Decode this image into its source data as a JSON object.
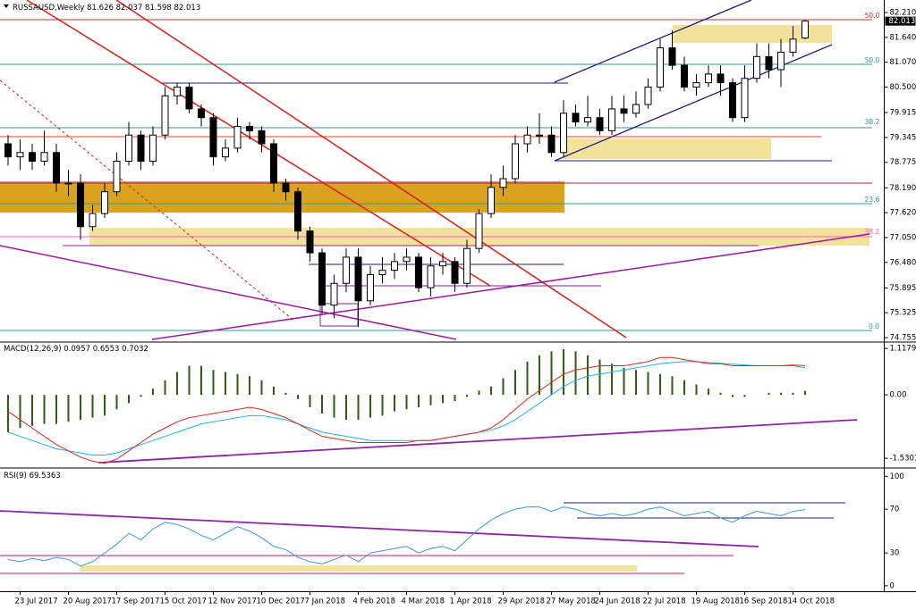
{
  "chart_data": [
    {
      "type": "candlestick",
      "title": "RUSSAUSD,Weekly",
      "categories": [
        null,
        "23 Jul 2017",
        null,
        null,
        null,
        "20 Aug 2017",
        null,
        null,
        null,
        "17 Sep 2017",
        null,
        null,
        null,
        "15 Oct 2017",
        null,
        null,
        null,
        "12 Nov 2017",
        null,
        null,
        null,
        "10 Dec 2017",
        null,
        null,
        null,
        "7 Jan 2018",
        null,
        null,
        null,
        "4 Feb 2018",
        null,
        null,
        null,
        "4 Mar 2018",
        null,
        null,
        null,
        "1 Apr 2018",
        null,
        null,
        null,
        "29 Apr 2018",
        null,
        null,
        null,
        "27 May 2018",
        null,
        null,
        null,
        "24 Jun 2018",
        null,
        null,
        null,
        "22 Jul 2018",
        null,
        null,
        null,
        "19 Aug 2018",
        null,
        null,
        null,
        "16 Sep 2018",
        null,
        null,
        null,
        "14 Oct 2018",
        null
      ],
      "open": [
        79.2,
        78.9,
        79.0,
        78.8,
        79.0,
        78.3,
        78.3,
        77.3,
        77.6,
        78.1,
        78.8,
        79.4,
        78.8,
        79.4,
        80.3,
        80.5,
        80.0,
        79.8,
        78.9,
        79.1,
        79.6,
        79.5,
        79.2,
        78.3,
        78.1,
        77.2,
        76.7,
        75.5,
        76.0,
        76.6,
        75.6,
        76.2,
        76.3,
        76.5,
        76.6,
        75.9,
        76.4,
        76.5,
        76.0,
        76.8,
        77.6,
        78.2,
        78.4,
        79.2,
        79.4,
        79.4,
        79.0,
        79.9,
        79.7,
        79.8,
        79.5,
        80.0,
        79.9,
        80.1,
        80.5,
        81.4,
        81.0,
        80.5,
        80.6,
        80.8,
        80.6,
        79.8,
        80.7,
        81.2,
        80.9,
        81.3,
        81.626
      ],
      "high": [
        79.4,
        79.3,
        79.2,
        79.5,
        79.2,
        78.6,
        78.5,
        77.8,
        78.3,
        79.0,
        79.7,
        79.5,
        79.6,
        80.5,
        80.6,
        80.6,
        80.1,
        79.9,
        79.3,
        79.8,
        79.7,
        79.6,
        79.3,
        78.4,
        78.2,
        77.3,
        76.8,
        76.2,
        76.8,
        76.8,
        76.4,
        76.6,
        76.7,
        76.8,
        76.7,
        76.6,
        76.7,
        76.6,
        77.0,
        77.7,
        78.5,
        78.7,
        79.4,
        79.6,
        79.9,
        79.6,
        80.2,
        80.1,
        80.3,
        80.0,
        80.3,
        80.3,
        80.4,
        80.7,
        81.6,
        81.8,
        81.2,
        80.8,
        81.0,
        81.0,
        80.7,
        81.0,
        81.5,
        81.5,
        81.6,
        81.9,
        82.037
      ],
      "low": [
        78.7,
        78.6,
        78.6,
        78.7,
        78.1,
        78.0,
        77.0,
        77.2,
        77.5,
        78.0,
        78.7,
        78.6,
        78.7,
        79.3,
        80.1,
        79.9,
        79.6,
        78.7,
        78.8,
        79.0,
        79.3,
        79.0,
        78.1,
        77.9,
        77.0,
        76.5,
        75.3,
        75.2,
        75.8,
        75.0,
        75.5,
        76.0,
        76.1,
        76.3,
        75.8,
        75.7,
        76.2,
        75.8,
        75.9,
        76.7,
        77.5,
        78.0,
        78.3,
        79.0,
        79.2,
        78.9,
        78.9,
        79.6,
        79.6,
        79.4,
        79.4,
        79.7,
        79.8,
        80.0,
        80.4,
        80.9,
        80.4,
        80.3,
        80.5,
        80.3,
        79.7,
        79.7,
        80.6,
        80.7,
        80.5,
        81.2,
        81.598
      ],
      "close": [
        78.9,
        79.0,
        78.8,
        79.0,
        78.3,
        78.3,
        77.3,
        77.6,
        78.1,
        78.8,
        79.4,
        78.8,
        79.4,
        80.3,
        80.5,
        80.0,
        79.8,
        78.9,
        79.1,
        79.6,
        79.5,
        79.2,
        78.3,
        78.1,
        77.2,
        76.7,
        75.5,
        76.0,
        76.6,
        75.6,
        76.2,
        76.3,
        76.5,
        76.6,
        75.9,
        76.4,
        76.5,
        76.0,
        76.8,
        77.6,
        78.2,
        78.4,
        79.2,
        79.4,
        79.4,
        79.0,
        79.9,
        79.7,
        79.8,
        79.5,
        80.0,
        79.9,
        80.1,
        80.5,
        81.4,
        81.0,
        80.5,
        80.6,
        80.8,
        80.6,
        79.8,
        80.7,
        81.2,
        80.9,
        81.3,
        81.6,
        82.013
      ],
      "up_color": "#ffffff",
      "down_color": "#000000",
      "ylim": [
        74.674,
        82.497
      ],
      "yticks": [
        {
          "value": 82.21,
          "label": "82.210"
        },
        {
          "value": 81.64,
          "label": "81.640"
        },
        {
          "value": 81.07,
          "label": "81.070"
        },
        {
          "value": 80.5,
          "label": "80.500"
        },
        79.915,
        79.345,
        78.775,
        {
          "value": 78.19,
          "label": "78.190"
        },
        {
          "value": 77.62,
          "label": "77.620"
        },
        {
          "value": 77.05,
          "label": "77.050"
        },
        {
          "value": 76.48,
          "label": "76.480"
        },
        75.895,
        75.325,
        74.755
      ],
      "annotations": [
        "50.0",
        "50.0",
        "38.2",
        "23.6",
        "38.2",
        "0.0"
      ]
    },
    {
      "type": "macd",
      "title": "MACD(12,26,9)",
      "histogram": [
        -0.9,
        -0.8,
        -0.75,
        -0.7,
        -0.7,
        -0.65,
        -0.6,
        -0.55,
        -0.5,
        -0.35,
        -0.2,
        -0.05,
        0.15,
        0.35,
        0.55,
        0.7,
        0.7,
        0.6,
        0.55,
        0.5,
        0.45,
        0.35,
        0.2,
        0.05,
        -0.1,
        -0.3,
        -0.45,
        -0.55,
        -0.6,
        -0.6,
        -0.55,
        -0.5,
        -0.4,
        -0.35,
        -0.3,
        -0.25,
        -0.2,
        -0.15,
        -0.05,
        0.1,
        0.2,
        0.4,
        0.6,
        0.8,
        0.95,
        1.05,
        1.1,
        1.05,
        0.95,
        0.85,
        0.75,
        0.65,
        0.6,
        0.55,
        0.5,
        0.45,
        0.35,
        0.25,
        0.15,
        0.05,
        -0.05,
        -0.05,
        0.0,
        0.05,
        0.05,
        0.05,
        0.0957
      ],
      "signal": [
        -0.9,
        -1.0,
        -1.1,
        -1.2,
        -1.3,
        -1.35,
        -1.4,
        -1.45,
        -1.45,
        -1.4,
        -1.3,
        -1.2,
        -1.1,
        -1.0,
        -0.9,
        -0.8,
        -0.7,
        -0.65,
        -0.6,
        -0.55,
        -0.5,
        -0.5,
        -0.55,
        -0.6,
        -0.7,
        -0.8,
        -0.9,
        -0.95,
        -1.0,
        -1.05,
        -1.1,
        -1.1,
        -1.1,
        -1.1,
        -1.1,
        -1.1,
        -1.05,
        -1.0,
        -0.95,
        -0.9,
        -0.85,
        -0.75,
        -0.6,
        -0.4,
        -0.2,
        0.0,
        0.2,
        0.35,
        0.45,
        0.5,
        0.55,
        0.6,
        0.65,
        0.7,
        0.75,
        0.78,
        0.8,
        0.8,
        0.78,
        0.76,
        0.74,
        0.72,
        0.7,
        0.7,
        0.7,
        0.7,
        0.6553
      ],
      "main": [
        -0.4,
        -0.6,
        -0.8,
        -1.0,
        -1.2,
        -1.35,
        -1.5,
        -1.6,
        -1.65,
        -1.55,
        -1.35,
        -1.15,
        -0.95,
        -0.8,
        -0.65,
        -0.55,
        -0.5,
        -0.45,
        -0.4,
        -0.35,
        -0.3,
        -0.35,
        -0.45,
        -0.55,
        -0.7,
        -0.85,
        -1.0,
        -1.05,
        -1.1,
        -1.15,
        -1.15,
        -1.15,
        -1.15,
        -1.15,
        -1.1,
        -1.1,
        -1.05,
        -1.0,
        -0.95,
        -0.9,
        -0.8,
        -0.6,
        -0.35,
        -0.1,
        0.1,
        0.3,
        0.5,
        0.6,
        0.65,
        0.7,
        0.7,
        0.7,
        0.75,
        0.8,
        0.9,
        0.9,
        0.85,
        0.8,
        0.75,
        0.75,
        0.7,
        0.7,
        0.7,
        0.7,
        0.7,
        0.72,
        0.7032
      ],
      "histogram_color": "#2e5e10",
      "signal_color": "#1fb4e6",
      "main_color": "#e0261a",
      "ylim": [
        -1.72,
        1.25
      ],
      "yticks": [
        1.1179,
        {
          "value": 0,
          "label": "0.00"
        },
        -1.5301
      ]
    },
    {
      "type": "rsi",
      "title": "RSI(9)",
      "values": [
        24,
        22,
        25,
        23,
        26,
        24,
        18,
        22,
        30,
        38,
        48,
        42,
        52,
        58,
        56,
        52,
        46,
        42,
        48,
        54,
        50,
        44,
        36,
        33,
        26,
        22,
        20,
        24,
        28,
        22,
        30,
        32,
        34,
        36,
        30,
        34,
        36,
        32,
        42,
        52,
        60,
        66,
        70,
        72,
        72,
        68,
        72,
        70,
        66,
        64,
        66,
        64,
        66,
        70,
        72,
        68,
        64,
        66,
        68,
        62,
        58,
        64,
        68,
        66,
        64,
        68,
        69.5363
      ],
      "color": "#3a9ad9",
      "ylim": [
        -5,
        106
      ],
      "yticks": [
        100,
        70,
        30,
        0
      ]
    }
  ]
}
